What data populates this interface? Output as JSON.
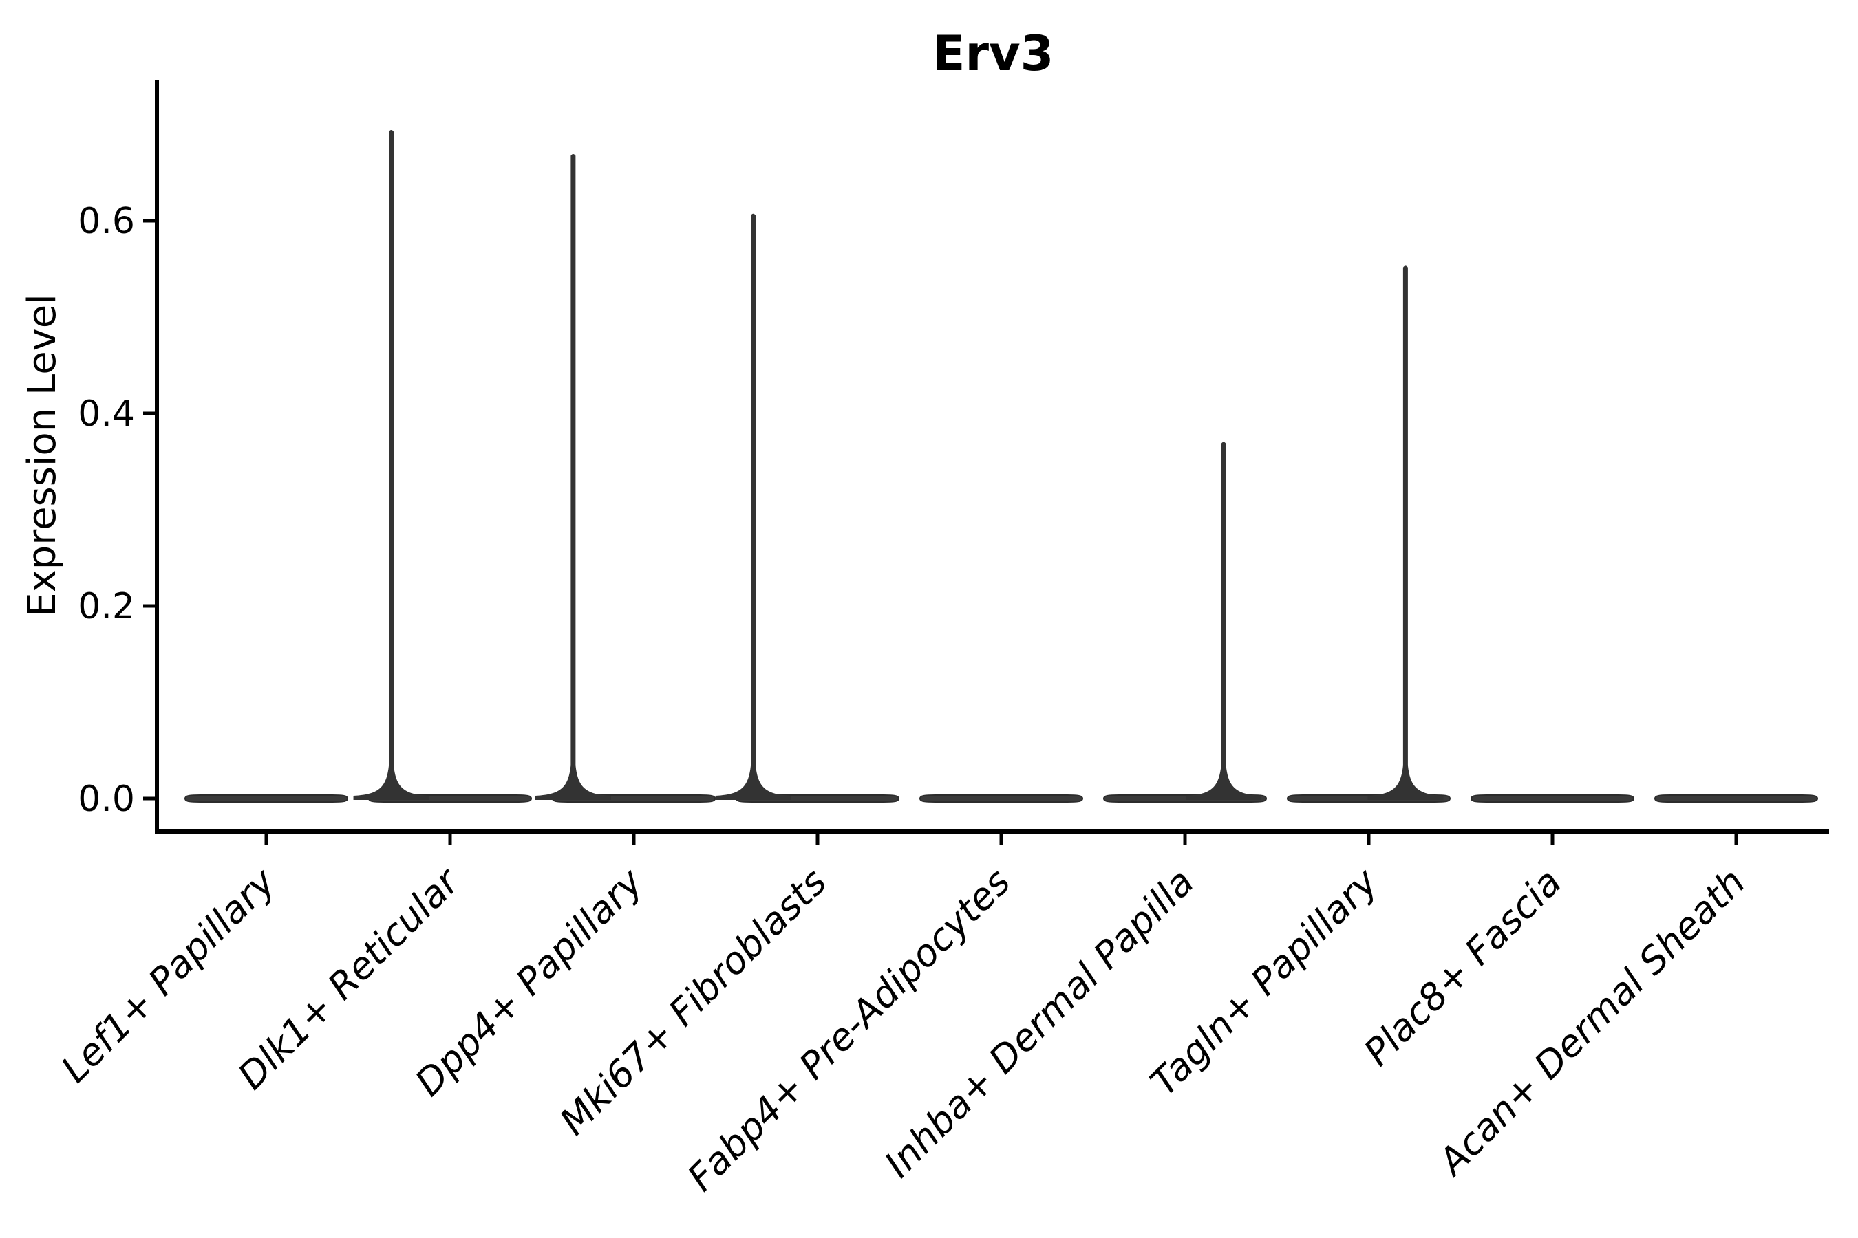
{
  "chart_data": {
    "type": "violin",
    "title": "Erv3",
    "ylabel": "Expression Level",
    "xlabel": "",
    "grid": false,
    "legend": false,
    "ylim": [
      -0.034,
      0.744
    ],
    "yticks": [
      {
        "value": 0.0,
        "label": "0.0"
      },
      {
        "value": 0.2,
        "label": "0.2"
      },
      {
        "value": 0.4,
        "label": "0.4"
      },
      {
        "value": 0.6,
        "label": "0.6"
      }
    ],
    "categories": [
      "Lef1+ Papillary",
      "Dlk1+ Reticular",
      "Dpp4+ Papillary",
      "Mki67+ Fibroblasts",
      "Fabp4+ Pre-Adipocytes",
      "Inhba+ Dermal Papilla",
      "Tagln+ Papillary",
      "Plac8+ Fascia",
      "Acan+ Dermal Sheath"
    ],
    "violins": [
      {
        "category": "Lef1+ Papillary",
        "baseline_value": 0.0,
        "max_expression": 0.0,
        "has_spike": false,
        "spike_offset_frac": 0.0
      },
      {
        "category": "Dlk1+ Reticular",
        "baseline_value": 0.0,
        "max_expression": 0.695,
        "has_spike": true,
        "spike_offset_frac": -0.32
      },
      {
        "category": "Dpp4+ Papillary",
        "baseline_value": 0.0,
        "max_expression": 0.67,
        "has_spike": true,
        "spike_offset_frac": -0.33
      },
      {
        "category": "Mki67+ Fibroblasts",
        "baseline_value": 0.0,
        "max_expression": 0.608,
        "has_spike": true,
        "spike_offset_frac": -0.35
      },
      {
        "category": "Fabp4+ Pre-Adipocytes",
        "baseline_value": 0.0,
        "max_expression": 0.0,
        "has_spike": false,
        "spike_offset_frac": 0.0
      },
      {
        "category": "Inhba+ Dermal Papilla",
        "baseline_value": 0.0,
        "max_expression": 0.371,
        "has_spike": true,
        "spike_offset_frac": 0.21
      },
      {
        "category": "Tagln+ Papillary",
        "baseline_value": 0.0,
        "max_expression": 0.554,
        "has_spike": true,
        "spike_offset_frac": 0.2
      },
      {
        "category": "Plac8+ Fascia",
        "baseline_value": 0.0,
        "max_expression": 0.0,
        "has_spike": false,
        "spike_offset_frac": 0.0
      },
      {
        "category": "Acan+ Dermal Sheath",
        "baseline_value": 0.0,
        "max_expression": 0.0,
        "has_spike": false,
        "spike_offset_frac": 0.0
      }
    ],
    "colors": {
      "violin_fill": "#3a3a3a",
      "violin_edge": "#2c2c2c",
      "spike": "#333333",
      "axis": "#000000",
      "text": "#000000",
      "background": "#ffffff"
    }
  }
}
